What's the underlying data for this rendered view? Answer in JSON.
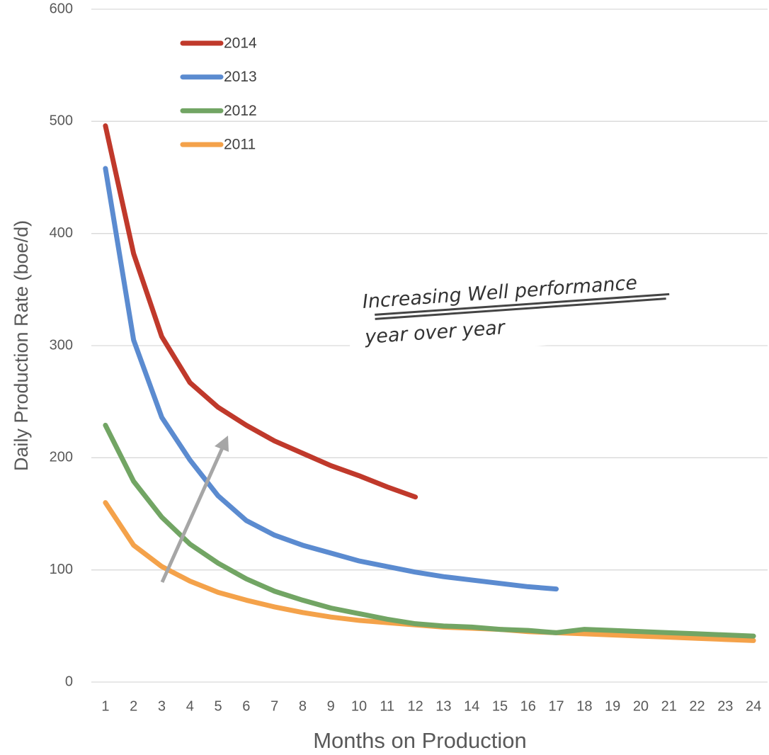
{
  "chart_data": {
    "type": "line",
    "x_label": "Months on Production",
    "y_label": "Daily Production Rate (boe/d)",
    "categories": [
      "1",
      "2",
      "3",
      "4",
      "5",
      "6",
      "7",
      "8",
      "9",
      "10",
      "11",
      "12",
      "13",
      "14",
      "15",
      "16",
      "17",
      "18",
      "19",
      "20",
      "21",
      "22",
      "23",
      "24"
    ],
    "ylim": [
      0,
      600
    ],
    "yticks": [
      0,
      100,
      200,
      300,
      400,
      500,
      600
    ],
    "grid": true,
    "legend": "upper left",
    "annotations": [
      "Increasing Well performance",
      "year over year"
    ],
    "series": [
      {
        "name": "2014",
        "color": "#c0392b",
        "values": [
          496,
          382,
          308,
          267,
          245,
          229,
          215,
          204,
          193,
          184,
          174,
          165,
          null,
          null,
          null,
          null,
          null,
          null,
          null,
          null,
          null,
          null,
          null,
          null
        ]
      },
      {
        "name": "2013",
        "color": "#5b8bd0",
        "values": [
          458,
          305,
          236,
          198,
          166,
          144,
          131,
          122,
          115,
          108,
          103,
          98,
          94,
          91,
          88,
          85,
          83,
          null,
          null,
          null,
          null,
          null,
          null,
          null
        ]
      },
      {
        "name": "2012",
        "color": "#72a564",
        "values": [
          229,
          179,
          147,
          123,
          106,
          92,
          81,
          73,
          66,
          61,
          56,
          52,
          50,
          49,
          47,
          46,
          44,
          47,
          46,
          45,
          44,
          43,
          42,
          41
        ]
      },
      {
        "name": "2011",
        "color": "#f4a24a",
        "values": [
          160,
          122,
          103,
          90,
          80,
          73,
          67,
          62,
          58,
          55,
          53,
          51,
          49,
          48,
          47,
          45,
          44,
          43,
          42,
          41,
          40,
          39,
          38,
          37
        ]
      }
    ]
  }
}
